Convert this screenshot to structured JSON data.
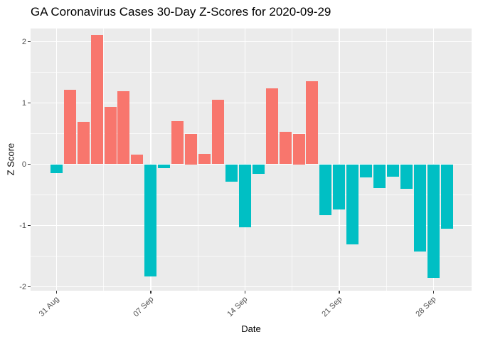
{
  "title": "GA Coronavirus Cases 30-Day Z-Scores for 2020-09-29",
  "colors": {
    "positive_bar": "#F8766D",
    "negative_bar": "#00BFC4",
    "panel_bg": "#EBEBEB",
    "grid": "#FFFFFF",
    "tick_label": "#4D4D4D",
    "tick_mark": "#333333",
    "title_text": "#000000"
  },
  "chart_data": {
    "type": "bar",
    "title": "GA Coronavirus Cases 30-Day Z-Scores for 2020-09-29",
    "xlabel": "Date",
    "ylabel": "Z Score",
    "ylim": [
      -2.06,
      2.22
    ],
    "grid": "on",
    "legend": "none",
    "y_ticks": [
      2,
      1,
      0,
      -1,
      -2
    ],
    "y_minor_ticks": [
      1.5,
      0.5,
      -0.5,
      -1.5
    ],
    "x_tick_labels": [
      "31 Aug",
      "07 Sep",
      "14 Sep",
      "21 Sep",
      "28 Sep"
    ],
    "x_tick_day_indices": [
      0,
      7,
      14,
      21,
      28
    ],
    "x_minor_day_indices": [
      3.5,
      10.5,
      17.5,
      24.5
    ],
    "x": [
      "2020-08-31",
      "2020-09-01",
      "2020-09-02",
      "2020-09-03",
      "2020-09-04",
      "2020-09-05",
      "2020-09-06",
      "2020-09-07",
      "2020-09-08",
      "2020-09-09",
      "2020-09-10",
      "2020-09-11",
      "2020-09-12",
      "2020-09-13",
      "2020-09-14",
      "2020-09-15",
      "2020-09-16",
      "2020-09-17",
      "2020-09-18",
      "2020-09-19",
      "2020-09-20",
      "2020-09-21",
      "2020-09-22",
      "2020-09-23",
      "2020-09-24",
      "2020-09-25",
      "2020-09-26",
      "2020-09-27",
      "2020-09-28",
      "2020-09-29"
    ],
    "values": [
      -0.14,
      1.21,
      0.69,
      2.11,
      0.94,
      1.19,
      0.16,
      -1.83,
      -0.06,
      0.7,
      0.5,
      0.17,
      1.05,
      -0.29,
      -1.03,
      -0.16,
      1.24,
      0.53,
      0.5,
      1.36,
      -0.83,
      -0.74,
      -1.31,
      -0.22,
      -0.39,
      -0.2,
      -0.4,
      -1.43,
      -1.85,
      -1.05
    ]
  }
}
